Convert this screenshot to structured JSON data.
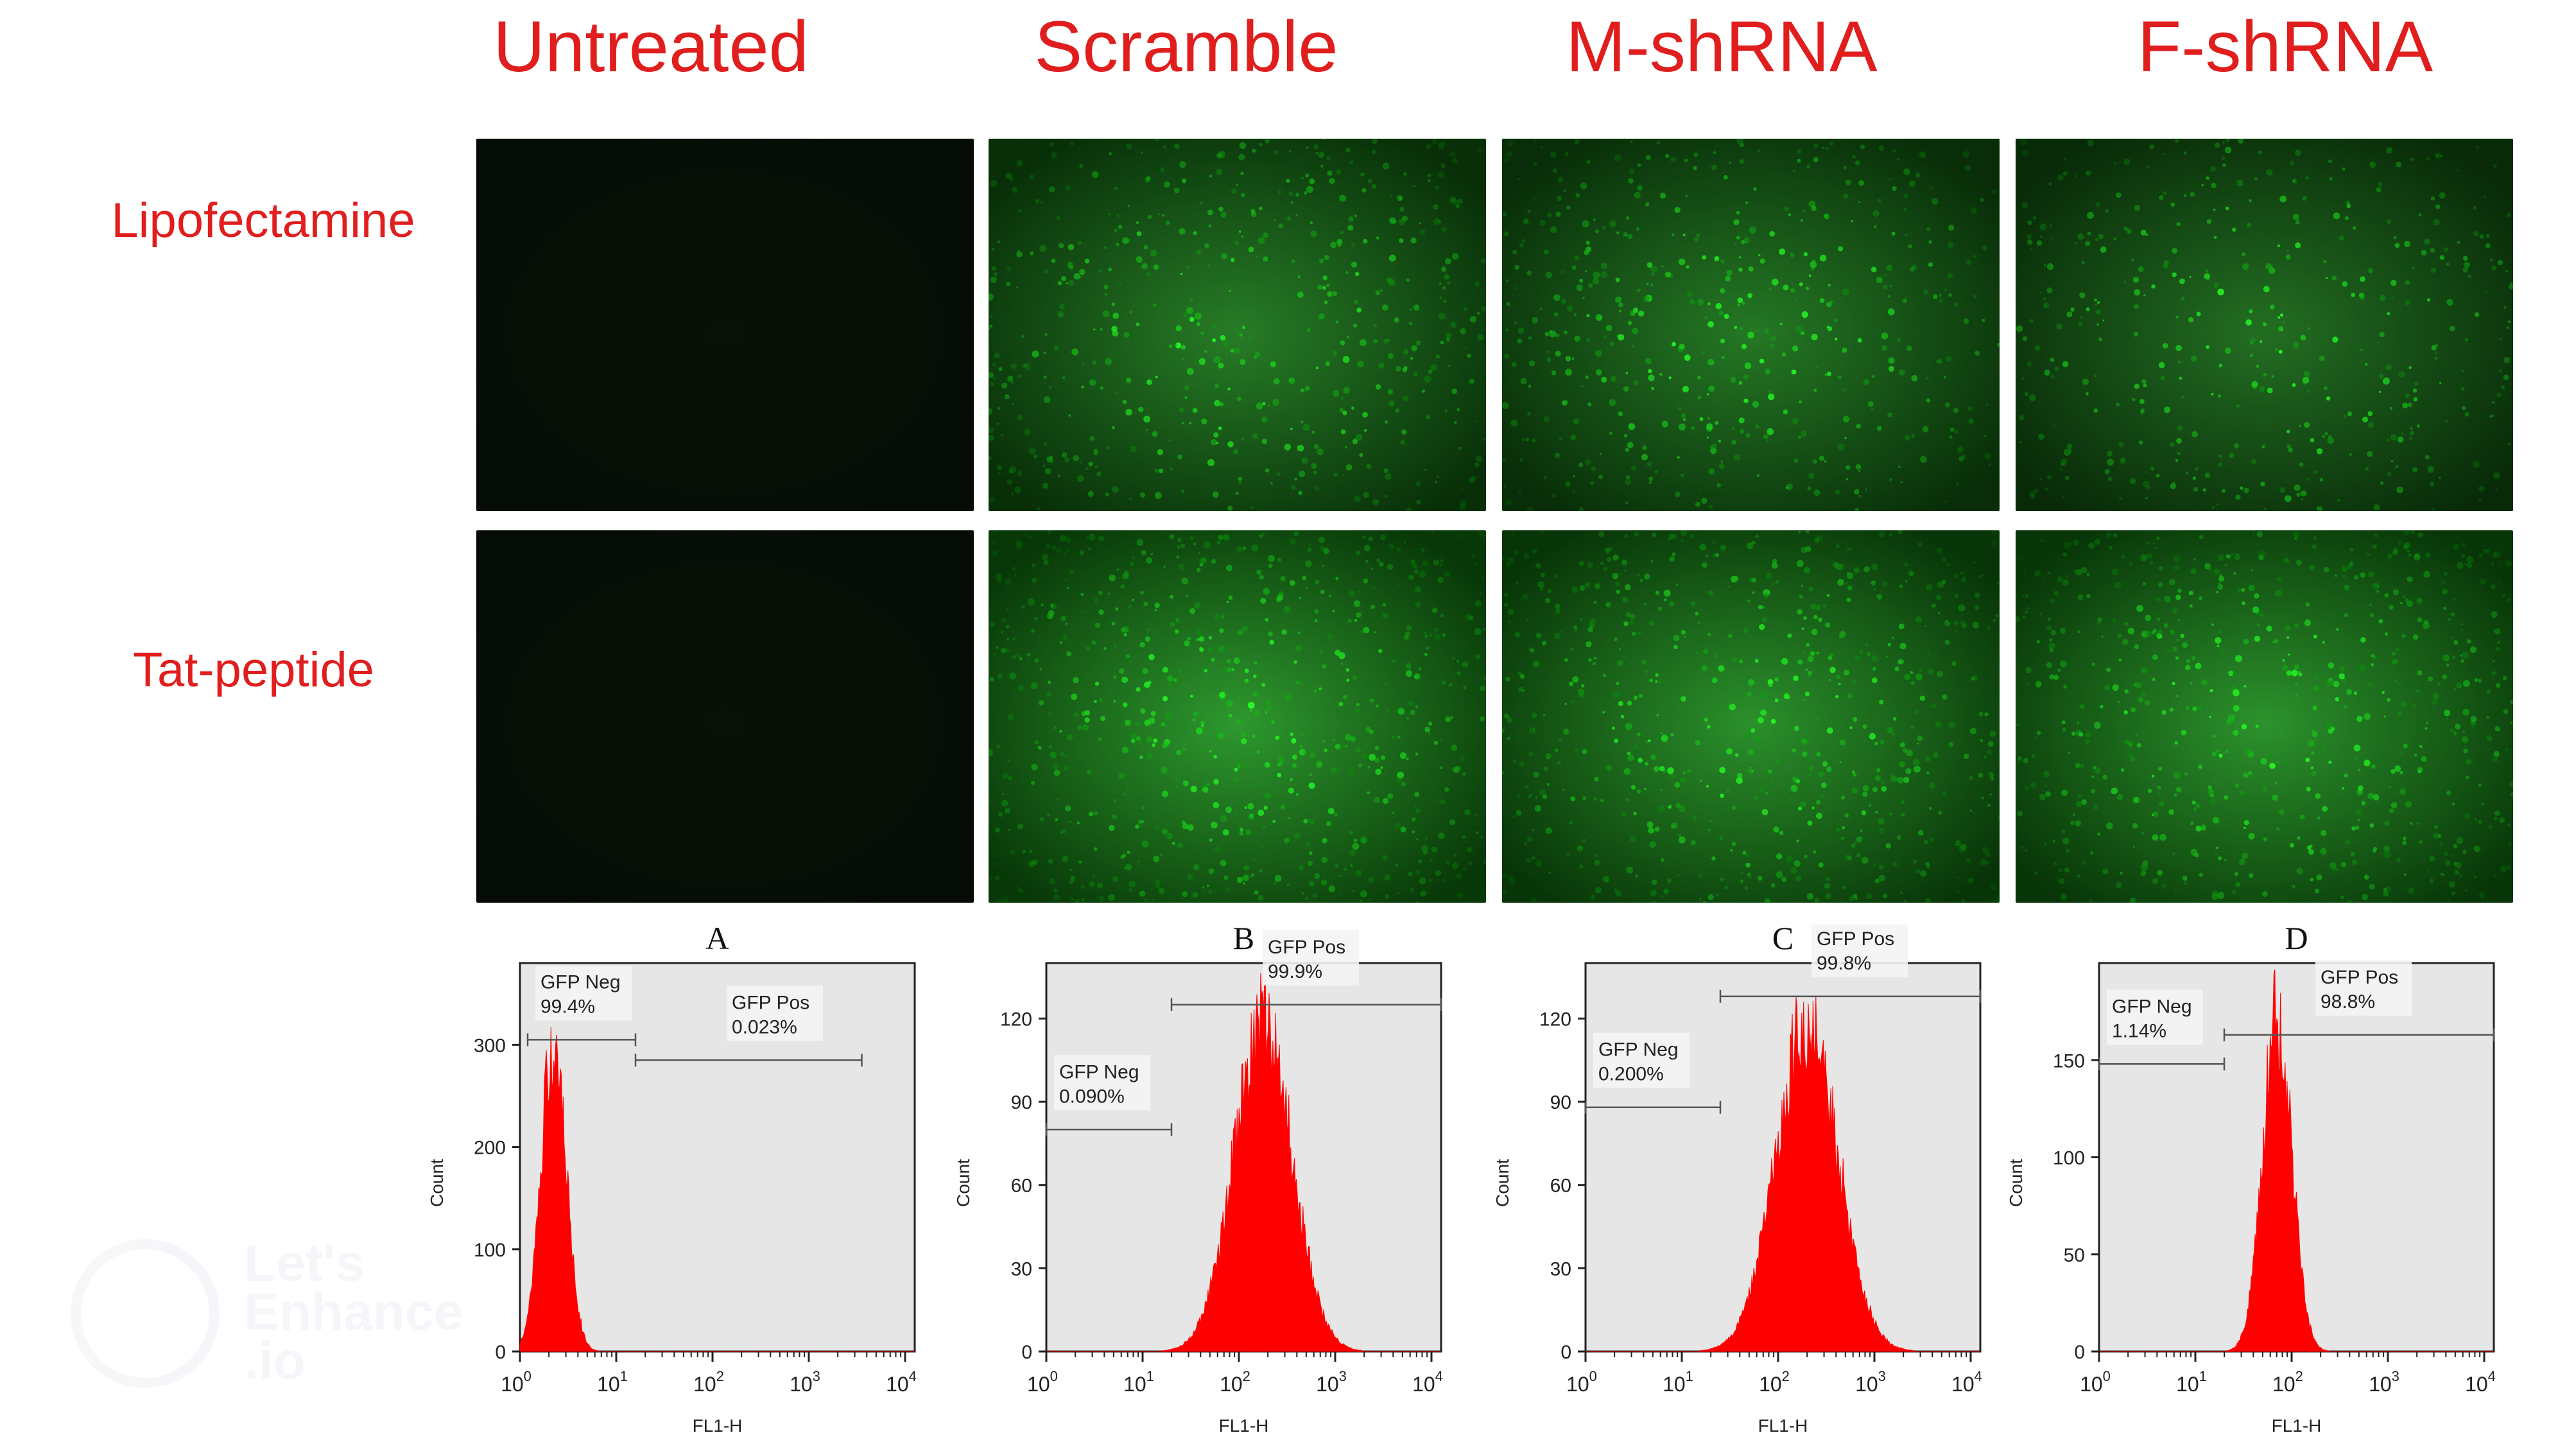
{
  "columns": [
    "Untreated",
    "Scramble",
    "M-shRNA",
    "F-shRNA"
  ],
  "rows": [
    "Lipofectamine",
    "Tat-peptide"
  ],
  "micrographs": [
    {
      "row": 0,
      "col": 0,
      "brightness": 0.0
    },
    {
      "row": 0,
      "col": 1,
      "brightness": 0.62
    },
    {
      "row": 0,
      "col": 2,
      "brightness": 0.58
    },
    {
      "row": 0,
      "col": 3,
      "brightness": 0.5
    },
    {
      "row": 1,
      "col": 0,
      "brightness": 0.0
    },
    {
      "row": 1,
      "col": 1,
      "brightness": 0.85
    },
    {
      "row": 1,
      "col": 2,
      "brightness": 0.78
    },
    {
      "row": 1,
      "col": 3,
      "brightness": 0.8
    }
  ],
  "watermark": "Let's Enhance .io",
  "chart_data": [
    {
      "type": "area",
      "panel_label": "A",
      "xlabel": "FL1-H",
      "ylabel": "Count",
      "x_scale": "log",
      "xlim": [
        10,
        40000
      ],
      "ylim": [
        0,
        380
      ],
      "yticks": [
        0,
        100,
        200,
        300
      ],
      "xticks": [
        "10^0",
        "10^1",
        "10^2",
        "10^3",
        "10^4"
      ],
      "peak_log": 0.35,
      "peak_width": 0.13,
      "peak_height": 325,
      "gates": [
        {
          "name": "GFP Neg",
          "value": "99.4%",
          "from_log": 0.08,
          "to_log": 1.2,
          "level": 305
        },
        {
          "name": "GFP Pos",
          "value": "0.023%",
          "from_log": 1.2,
          "to_log": 3.55,
          "level": 285
        }
      ],
      "color": "#ff0000"
    },
    {
      "type": "area",
      "panel_label": "B",
      "xlabel": "FL1-H",
      "ylabel": "Count",
      "x_scale": "log",
      "xlim": [
        10,
        40000
      ],
      "ylim": [
        0,
        140
      ],
      "yticks": [
        0,
        30,
        60,
        90,
        120
      ],
      "xticks": [
        "10^0",
        "10^1",
        "10^2",
        "10^3",
        "10^4"
      ],
      "peak_log": 2.25,
      "peak_width": 0.3,
      "peak_height": 128,
      "gates": [
        {
          "name": "GFP Neg",
          "value": "0.090%",
          "from_log": 0.0,
          "to_log": 1.3,
          "level": 80
        },
        {
          "name": "GFP Pos",
          "value": "99.9%",
          "from_log": 1.3,
          "to_log": 4.1,
          "level": 125
        }
      ],
      "color": "#ff0000"
    },
    {
      "type": "area",
      "panel_label": "C",
      "xlabel": "FL1-H",
      "ylabel": "Count",
      "x_scale": "log",
      "xlim": [
        10,
        40000
      ],
      "ylim": [
        0,
        140
      ],
      "yticks": [
        0,
        30,
        60,
        90,
        120
      ],
      "xticks": [
        "10^0",
        "10^1",
        "10^2",
        "10^3",
        "10^4"
      ],
      "peak_log": 2.3,
      "peak_width": 0.32,
      "peak_height": 128,
      "gates": [
        {
          "name": "GFP Neg",
          "value": "0.200%",
          "from_log": 0.0,
          "to_log": 1.4,
          "level": 88
        },
        {
          "name": "GFP Pos",
          "value": "99.8%",
          "from_log": 1.4,
          "to_log": 4.1,
          "level": 128
        }
      ],
      "color": "#ff0000"
    },
    {
      "type": "area",
      "panel_label": "D",
      "xlabel": "FL1-H",
      "ylabel": "Count",
      "x_scale": "log",
      "xlim": [
        10,
        40000
      ],
      "ylim": [
        0,
        200
      ],
      "yticks": [
        0,
        50,
        100,
        150
      ],
      "xticks": [
        "10^0",
        "10^1",
        "10^2",
        "10^3",
        "10^4"
      ],
      "peak_log": 1.85,
      "peak_width": 0.15,
      "peak_height": 185,
      "gates": [
        {
          "name": "GFP Neg",
          "value": "1.14%",
          "from_log": 0.0,
          "to_log": 1.3,
          "level": 148
        },
        {
          "name": "GFP Pos",
          "value": "98.8%",
          "from_log": 1.3,
          "to_log": 4.1,
          "level": 163
        }
      ],
      "color": "#ff0000"
    }
  ]
}
